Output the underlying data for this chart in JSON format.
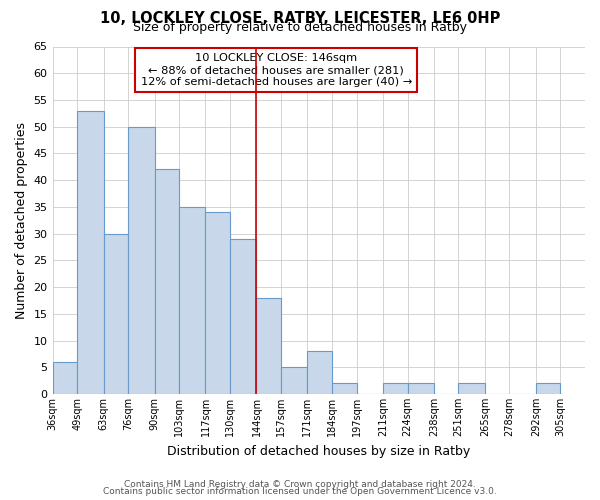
{
  "title": "10, LOCKLEY CLOSE, RATBY, LEICESTER, LE6 0HP",
  "subtitle": "Size of property relative to detached houses in Ratby",
  "xlabel": "Distribution of detached houses by size in Ratby",
  "ylabel": "Number of detached properties",
  "bar_edges": [
    36,
    49,
    63,
    76,
    90,
    103,
    117,
    130,
    144,
    157,
    171,
    184,
    197,
    211,
    224,
    238,
    251,
    265,
    278,
    292,
    305
  ],
  "bar_heights": [
    6,
    53,
    30,
    50,
    42,
    35,
    34,
    29,
    18,
    5,
    8,
    2,
    0,
    2,
    2,
    0,
    2,
    0,
    0,
    2
  ],
  "bar_color": "#c8d8ea",
  "bar_edge_color": "#6699cc",
  "reference_line_x": 144,
  "reference_line_color": "#cc0000",
  "ylim": [
    0,
    65
  ],
  "annotation_title": "10 LOCKLEY CLOSE: 146sqm",
  "annotation_line1": "← 88% of detached houses are smaller (281)",
  "annotation_line2": "12% of semi-detached houses are larger (40) →",
  "annotation_box_color": "#ffffff",
  "annotation_box_edge_color": "#cc0000",
  "footer_line1": "Contains HM Land Registry data © Crown copyright and database right 2024.",
  "footer_line2": "Contains public sector information licensed under the Open Government Licence v3.0.",
  "tick_labels": [
    "36sqm",
    "49sqm",
    "63sqm",
    "76sqm",
    "90sqm",
    "103sqm",
    "117sqm",
    "130sqm",
    "144sqm",
    "157sqm",
    "171sqm",
    "184sqm",
    "197sqm",
    "211sqm",
    "224sqm",
    "238sqm",
    "251sqm",
    "265sqm",
    "278sqm",
    "292sqm",
    "305sqm"
  ],
  "ytick_values": [
    0,
    5,
    10,
    15,
    20,
    25,
    30,
    35,
    40,
    45,
    50,
    55,
    60,
    65
  ],
  "background_color": "#ffffff",
  "grid_color": "#cccccc"
}
